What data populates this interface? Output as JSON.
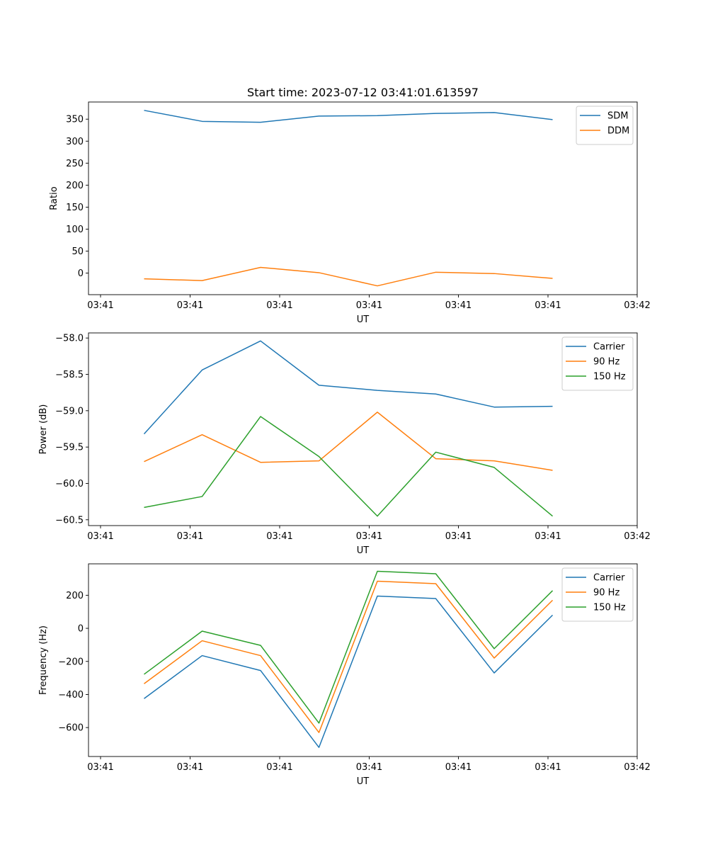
{
  "figure": {
    "title": "Start time: 2023-07-12 03:41:01.613597"
  },
  "chart_data": [
    {
      "type": "line",
      "title": "Start time: 2023-07-12 03:41:01.613597",
      "xlabel": "UT",
      "ylabel": "Ratio",
      "x_tick_labels": [
        "03:41",
        "03:41",
        "03:41",
        "03:41",
        "03:41",
        "03:41",
        "03:42"
      ],
      "y_ticks": [
        0,
        50,
        100,
        150,
        200,
        250,
        300,
        350
      ],
      "y_tick_labels": [
        "0",
        "50",
        "100",
        "150",
        "200",
        "250",
        "300",
        "350"
      ],
      "ylim": [
        -49,
        389
      ],
      "grid": false,
      "legend_location": "upper right",
      "series": [
        {
          "name": "SDM",
          "color": "#1f77b4",
          "values": [
            370,
            345,
            343,
            357,
            358,
            363,
            365,
            349
          ]
        },
        {
          "name": "DDM",
          "color": "#ff7f0e",
          "values": [
            -13,
            -17,
            13,
            1,
            -29,
            2,
            -1,
            -12
          ]
        }
      ]
    },
    {
      "type": "line",
      "xlabel": "UT",
      "ylabel": "Power (dB)",
      "x_tick_labels": [
        "03:41",
        "03:41",
        "03:41",
        "03:41",
        "03:41",
        "03:41",
        "03:42"
      ],
      "y_ticks": [
        -58.0,
        -58.5,
        -59.0,
        -59.5,
        -60.0,
        -60.5
      ],
      "y_tick_labels": [
        "−58.0",
        "−58.5",
        "−59.0",
        "−59.5",
        "−60.0",
        "−60.5"
      ],
      "ylim": [
        -60.58,
        -57.93
      ],
      "grid": false,
      "legend_location": "upper right",
      "series": [
        {
          "name": "Carrier",
          "color": "#1f77b4",
          "values": [
            -59.32,
            -58.44,
            -58.04,
            -58.65,
            -58.72,
            -58.77,
            -58.95,
            -58.94
          ]
        },
        {
          "name": "90 Hz",
          "color": "#ff7f0e",
          "values": [
            -59.7,
            -59.33,
            -59.71,
            -59.69,
            -59.02,
            -59.66,
            -59.69,
            -59.82
          ]
        },
        {
          "name": "150 Hz",
          "color": "#2ca02c",
          "values": [
            -60.33,
            -60.18,
            -59.08,
            -59.63,
            -60.45,
            -59.57,
            -59.78,
            -60.45
          ]
        }
      ]
    },
    {
      "type": "line",
      "xlabel": "UT",
      "ylabel": "Frequency (Hz)",
      "x_tick_labels": [
        "03:41",
        "03:41",
        "03:41",
        "03:41",
        "03:41",
        "03:41",
        "03:42"
      ],
      "y_ticks": [
        -600,
        -400,
        -200,
        0,
        200
      ],
      "y_tick_labels": [
        "−600",
        "−400",
        "−200",
        "0",
        "200"
      ],
      "ylim": [
        -775,
        390
      ],
      "grid": false,
      "legend_location": "upper right",
      "series": [
        {
          "name": "Carrier",
          "color": "#1f77b4",
          "values": [
            -425,
            -165,
            -255,
            -720,
            195,
            180,
            -270,
            80
          ]
        },
        {
          "name": "90 Hz",
          "color": "#ff7f0e",
          "values": [
            -335,
            -75,
            -165,
            -630,
            285,
            270,
            -180,
            170
          ]
        },
        {
          "name": "150 Hz",
          "color": "#2ca02c",
          "values": [
            -278,
            -17,
            -103,
            -573,
            345,
            330,
            -123,
            228
          ]
        }
      ]
    }
  ]
}
